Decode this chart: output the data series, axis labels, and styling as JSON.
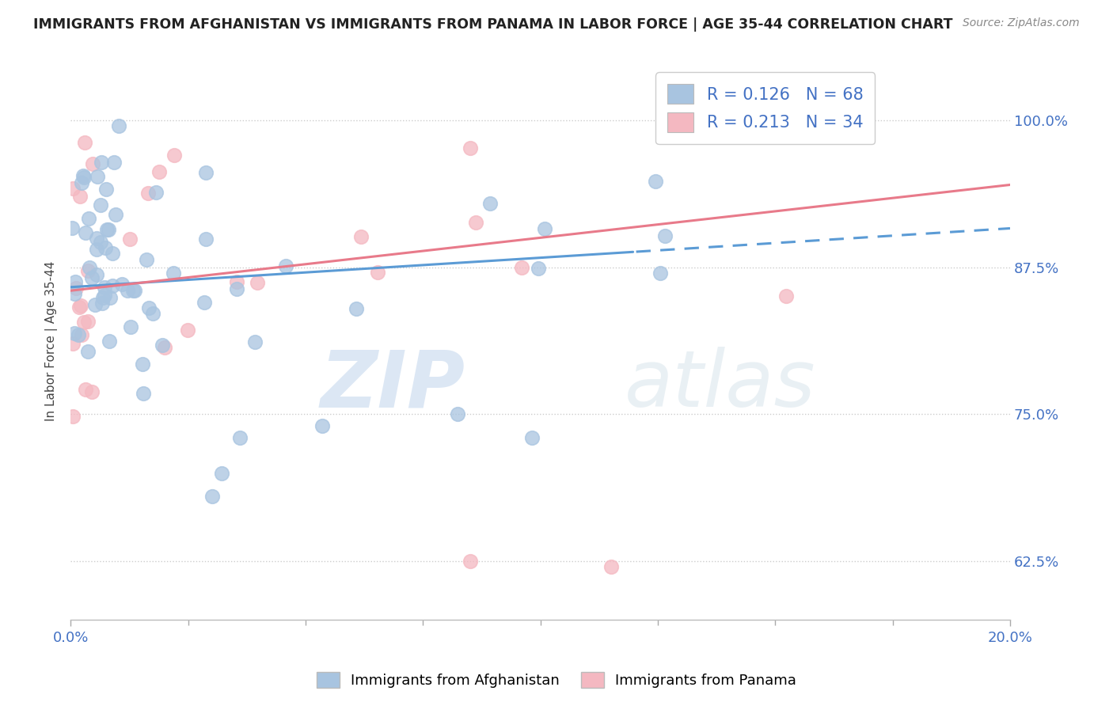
{
  "title": "IMMIGRANTS FROM AFGHANISTAN VS IMMIGRANTS FROM PANAMA IN LABOR FORCE | AGE 35-44 CORRELATION CHART",
  "source": "Source: ZipAtlas.com",
  "ylabel": "In Labor Force | Age 35-44",
  "yticks": [
    "62.5%",
    "75.0%",
    "87.5%",
    "100.0%"
  ],
  "ytick_vals": [
    0.625,
    0.75,
    0.875,
    1.0
  ],
  "xlim": [
    0.0,
    0.2
  ],
  "ylim": [
    0.575,
    1.05
  ],
  "afghanistan_color": "#a8c4e0",
  "panama_color": "#f4b8c1",
  "afghanistan_line_color": "#5b9bd5",
  "panama_line_color": "#e87a8a",
  "R_afghanistan": 0.126,
  "N_afghanistan": 68,
  "R_panama": 0.213,
  "N_panama": 34,
  "watermark_zip": "ZIP",
  "watermark_atlas": "atlas",
  "background_color": "#ffffff",
  "grid_color": "#cccccc",
  "tick_color": "#4472c4",
  "title_color": "#222222",
  "source_color": "#888888",
  "legend_text_color": "#4472c4"
}
